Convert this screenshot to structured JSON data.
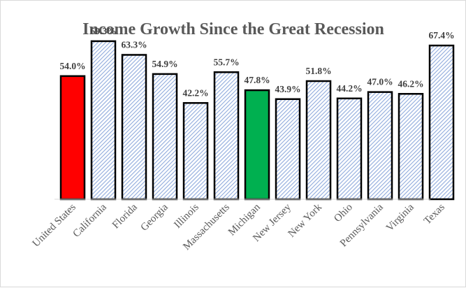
{
  "chart_data": {
    "type": "bar",
    "title": "Income Growth Since the Great Recession",
    "xlabel": "",
    "ylabel": "",
    "categories": [
      "United States",
      "California",
      "Florida",
      "Georgia",
      "Illinois",
      "Massachusetts",
      "Michigan",
      "New Jersey",
      "New York",
      "Ohio",
      "Pennsylvania",
      "Virginia",
      "Texas"
    ],
    "values": [
      54.0,
      69.3,
      63.3,
      54.9,
      42.2,
      55.7,
      47.8,
      43.9,
      51.8,
      44.2,
      47.0,
      46.2,
      67.4
    ],
    "value_labels": [
      "54.0%",
      "69.3%",
      "63.3%",
      "54.9%",
      "42.2%",
      "55.7%",
      "47.8%",
      "43.9%",
      "51.8%",
      "44.2%",
      "47.0%",
      "46.2%",
      "67.4%"
    ],
    "ylim": [
      0,
      80
    ],
    "grid": false,
    "legend": "none",
    "bar_styles": [
      "solid-red",
      "hatched-blue",
      "hatched-blue",
      "hatched-blue",
      "hatched-blue",
      "hatched-blue",
      "solid-green",
      "hatched-blue",
      "hatched-blue",
      "hatched-blue",
      "hatched-blue",
      "hatched-blue",
      "hatched-blue"
    ],
    "colors": {
      "red": "#ff0000",
      "green": "#00b050",
      "hatch": "#8faadc",
      "outline": "#000000",
      "axis": "#d9d9d9"
    }
  }
}
